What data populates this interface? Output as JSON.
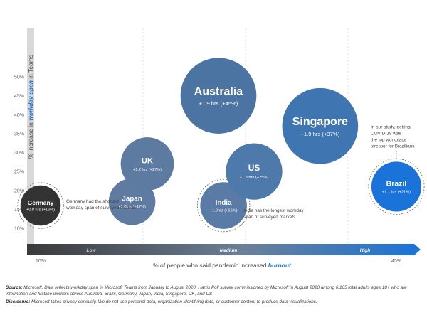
{
  "chart_data": {
    "type": "bubble",
    "xlabel_prefix": "% of people who said pandemic increased ",
    "xlabel_emphasis": "burnout",
    "ylabel_prefix": "% increase in ",
    "ylabel_emphasis": "workday span",
    "ylabel_suffix": " in Teams",
    "yticks": [
      "10%",
      "15%",
      "20%",
      "25%",
      "30%",
      "35%",
      "40%",
      "45%",
      "50%"
    ],
    "x_endpoint_labels": [
      "10%",
      "45%"
    ],
    "x_bands": [
      "Low",
      "Medium",
      "High"
    ],
    "series": [
      {
        "country": "Germany",
        "label": "+0.8 hrs (+16%)",
        "x": 10,
        "y": 16,
        "color": "#333333"
      },
      {
        "country": "Japan",
        "label": "+1.0hrs (+17%)",
        "x": 19,
        "y": 17,
        "color": "#5f7ba1"
      },
      {
        "country": "UK",
        "label": "+1.2 hrs (+27%)",
        "x": 20.5,
        "y": 27,
        "color": "#5d7aa1"
      },
      {
        "country": "Australia",
        "label": "+1.9 hrs (+45%)",
        "x": 27.5,
        "y": 45,
        "color": "#4c74a3"
      },
      {
        "country": "India",
        "label": "+1.0hrs (+16%)",
        "x": 28,
        "y": 16,
        "color": "#5a7ba6"
      },
      {
        "country": "US",
        "label": "+1.3 hrs (+25%)",
        "x": 31,
        "y": 25,
        "color": "#4e79ab"
      },
      {
        "country": "Singapore",
        "label": "+1.9 hrs (+37%)",
        "x": 37.5,
        "y": 37,
        "color": "#3f76b2"
      },
      {
        "country": "Brazil",
        "label": "+1.1 hrs (+21%)",
        "x": 45,
        "y": 21,
        "color": "#1a73d9"
      }
    ],
    "annotations": {
      "germany": [
        "Germany had the shortest",
        "workday span of surveyed markets"
      ],
      "india": [
        "India has the longest workday",
        "span of surveyed markets"
      ],
      "brazil": [
        "In our study, getting",
        "COVID-19 was",
        "the top workplace",
        "stressor for Brazilians"
      ]
    },
    "colors": {
      "low": "#3a3a3a",
      "high": "#1a73d9",
      "ybar": "#d9d9d9"
    }
  },
  "footer": {
    "source_label": "Source:",
    "source_text": " Microsoft. Data reflects workday span in Microsoft Teams from January to August 2020. Harris Poll survey commissioned by Microsoft in August 2020 among 6,165 total adults ages 18+ who are information and firstline workers across Australia, Brazil, Germany, Japan, India, Singapore, UK, and US",
    "disclosure_label": "Disclosure:",
    "disclosure_text": " Microsoft takes privacy seriously. We do not use personal data, organization identifying data, or customer content to produce data visualizations."
  }
}
